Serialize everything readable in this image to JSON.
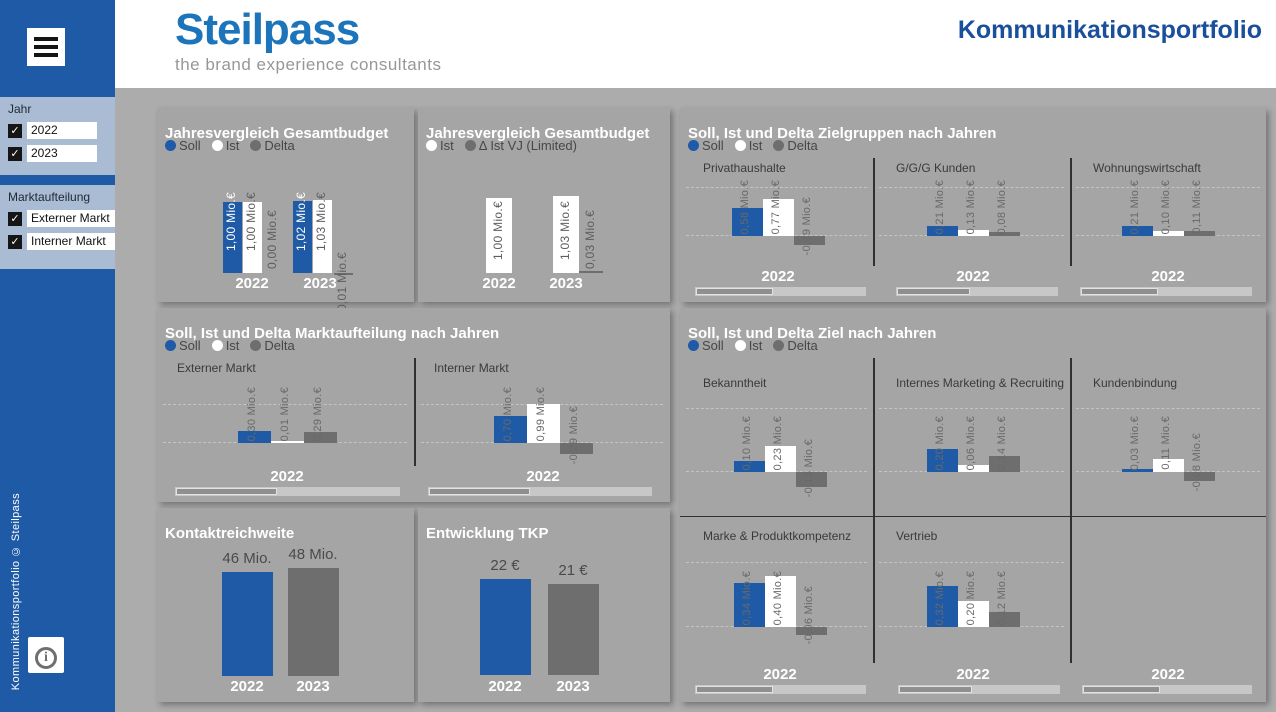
{
  "colors": {
    "blue": "#1F5AA6",
    "white": "#FFFFFF",
    "delta_gray": "#6E6E6E",
    "label_gray": "#696969",
    "sidebar_blue": "#1E5AA5",
    "filter_bg": "#A9BCD4",
    "logo_blue": "#1C74BA",
    "title_blue": "#1A4F9C",
    "panel_gray": "#A5A5A5"
  },
  "header": {
    "logo_text": "Steilpass",
    "logo_tagline": "the brand experience consultants",
    "page_title": "Kommunikationsportfolio"
  },
  "sidebar": {
    "menu_icon": "hamburger-icon",
    "copyright": "Kommunikationsportfolio © Steilpass",
    "info_icon": "i",
    "filters": [
      {
        "label": "Jahr",
        "options": [
          {
            "label": "2022",
            "checked": true
          },
          {
            "label": "2023",
            "checked": true
          }
        ]
      },
      {
        "label": "Marktaufteilung",
        "options": [
          {
            "label": "Externer Markt",
            "checked": true
          },
          {
            "label": "Interner Markt",
            "checked": true
          }
        ]
      }
    ]
  },
  "chart_data": [
    {
      "id": "p1",
      "type": "bar",
      "title": "Jahresvergleich Gesamtbudget",
      "unit": "Mio.€",
      "legend": [
        {
          "label": "Soll",
          "color": "#1F5AA6"
        },
        {
          "label": "Ist",
          "color": "#FFFFFF"
        },
        {
          "label": "Delta",
          "color": "#6E6E6E"
        }
      ],
      "categories": [
        "2022",
        "2023"
      ],
      "series": [
        {
          "name": "Soll",
          "color": "#1F5AA6",
          "values": [
            1.0,
            1.02
          ],
          "labels": [
            "1,00 Mio.€",
            "1,02 Mio.€"
          ]
        },
        {
          "name": "Ist",
          "color": "#FFFFFF",
          "values": [
            1.0,
            1.03
          ],
          "labels": [
            "1,00 Mio.€",
            "1,03 Mio.€"
          ]
        },
        {
          "name": "Delta",
          "color": "#6E6E6E",
          "values": [
            0.0,
            -0.01
          ],
          "labels": [
            "0,00 Mio.€",
            "-0,01 Mio.€"
          ]
        }
      ]
    },
    {
      "id": "p2",
      "type": "bar",
      "title": "Jahresvergleich Gesamtbudget",
      "unit": "Mio.€",
      "legend": [
        {
          "label": "Ist",
          "color": "#FFFFFF"
        },
        {
          "label": "Δ Ist VJ (Limited)",
          "color": "#6E6E6E"
        }
      ],
      "categories": [
        "2022",
        "2023"
      ],
      "series": [
        {
          "name": "Ist",
          "color": "#FFFFFF",
          "values": [
            1.0,
            1.03
          ],
          "labels": [
            "1,00 Mio.€",
            "1,03 Mio.€"
          ]
        },
        {
          "name": "Δ Ist VJ (Limited)",
          "color": "#6E6E6E",
          "values": [
            null,
            0.03
          ],
          "labels": [
            null,
            "0,03 Mio.€"
          ]
        }
      ]
    },
    {
      "id": "p3",
      "type": "bar",
      "title": "Soll, Ist und Delta Zielgruppen nach Jahren",
      "unit": "Mio.€",
      "legend": [
        {
          "label": "Soll",
          "color": "#1F5AA6"
        },
        {
          "label": "Ist",
          "color": "#FFFFFF"
        },
        {
          "label": "Delta",
          "color": "#6E6E6E"
        }
      ],
      "categories": [
        "2022",
        "2022",
        "2022"
      ],
      "small_multiples": [
        {
          "title": "Privathaushalte",
          "category": "2022",
          "values": [
            0.58,
            0.77,
            -0.19
          ],
          "labels": [
            "0,58 Mio.€",
            "0,77 Mio.€",
            "-0,19 Mio.€"
          ]
        },
        {
          "title": "G/G/G Kunden",
          "category": "2022",
          "values": [
            0.21,
            0.13,
            0.08
          ],
          "labels": [
            "0,21 Mio.€",
            "0,13 Mio.€",
            "0,08 Mio.€"
          ]
        },
        {
          "title": "Wohnungswirtschaft",
          "category": "2022",
          "values": [
            0.21,
            0.1,
            0.11
          ],
          "labels": [
            "0,21 Mio.€",
            "0,10 Mio.€",
            "0,11 Mio.€"
          ]
        }
      ]
    },
    {
      "id": "p4",
      "type": "bar",
      "title": "Soll, Ist und Delta Marktaufteilung nach Jahren",
      "unit": "Mio.€",
      "legend": [
        {
          "label": "Soll",
          "color": "#1F5AA6"
        },
        {
          "label": "Ist",
          "color": "#FFFFFF"
        },
        {
          "label": "Delta",
          "color": "#6E6E6E"
        }
      ],
      "categories": [
        "2022",
        "2022"
      ],
      "small_multiples": [
        {
          "title": "Externer Markt",
          "category": "2022",
          "values": [
            0.3,
            0.01,
            0.29
          ],
          "labels": [
            "0,30 Mio.€",
            "0,01 Mio.€",
            "0,29 Mio.€"
          ]
        },
        {
          "title": "Interner Markt",
          "category": "2022",
          "values": [
            0.7,
            0.99,
            -0.29
          ],
          "labels": [
            "0,70 Mio.€",
            "0,99 Mio.€",
            "-0,29 Mio.€"
          ]
        }
      ]
    },
    {
      "id": "p5",
      "type": "bar",
      "title": "Soll, Ist und Delta Ziel nach Jahren",
      "unit": "Mio.€",
      "legend": [
        {
          "label": "Soll",
          "color": "#1F5AA6"
        },
        {
          "label": "Ist",
          "color": "#FFFFFF"
        },
        {
          "label": "Delta",
          "color": "#6E6E6E"
        }
      ],
      "categories": [
        "2022",
        "2022",
        "2022"
      ],
      "small_multiples": [
        {
          "title": "Bekanntheit",
          "category": "2022",
          "values": [
            0.1,
            0.23,
            -0.13
          ],
          "labels": [
            "0,10 Mio.€",
            "0,23 Mio.€",
            "-0,13 Mio.€"
          ]
        },
        {
          "title": "Internes Marketing & Recruiting",
          "category": "2022",
          "values": [
            0.2,
            0.06,
            0.14
          ],
          "labels": [
            "0,20 Mio.€",
            "0,06 Mio.€",
            "0,14 Mio.€"
          ]
        },
        {
          "title": "Kundenbindung",
          "category": "2022",
          "values": [
            0.03,
            0.11,
            -0.08
          ],
          "labels": [
            "0,03 Mio.€",
            "0,11 Mio.€",
            "-0,08 Mio.€"
          ]
        },
        {
          "title": "Marke & Produktkompetenz",
          "category": "2022",
          "values": [
            0.34,
            0.4,
            -0.06
          ],
          "labels": [
            "0,34 Mio.€",
            "0,40 Mio.€",
            "-0,06 Mio.€"
          ]
        },
        {
          "title": "Vertrieb",
          "category": "2022",
          "values": [
            0.32,
            0.2,
            0.12
          ],
          "labels": [
            "0,32 Mio.€",
            "0,20 Mio.€",
            "0,12 Mio.€"
          ]
        }
      ]
    },
    {
      "id": "p6",
      "type": "bar",
      "title": "Kontaktreichweite",
      "unit": "Mio.",
      "categories": [
        "2022",
        "2023"
      ],
      "values": [
        46,
        48
      ],
      "labels": [
        "46 Mio.",
        "48 Mio."
      ],
      "bar_colors": [
        "#1F5AA6",
        "#6E6E6E"
      ]
    },
    {
      "id": "p7",
      "type": "bar",
      "title": "Entwicklung TKP",
      "unit": "€",
      "categories": [
        "2022",
        "2023"
      ],
      "values": [
        22,
        21
      ],
      "labels": [
        "22 €",
        "21 €"
      ],
      "bar_colors": [
        "#1F5AA6",
        "#6E6E6E"
      ]
    }
  ]
}
